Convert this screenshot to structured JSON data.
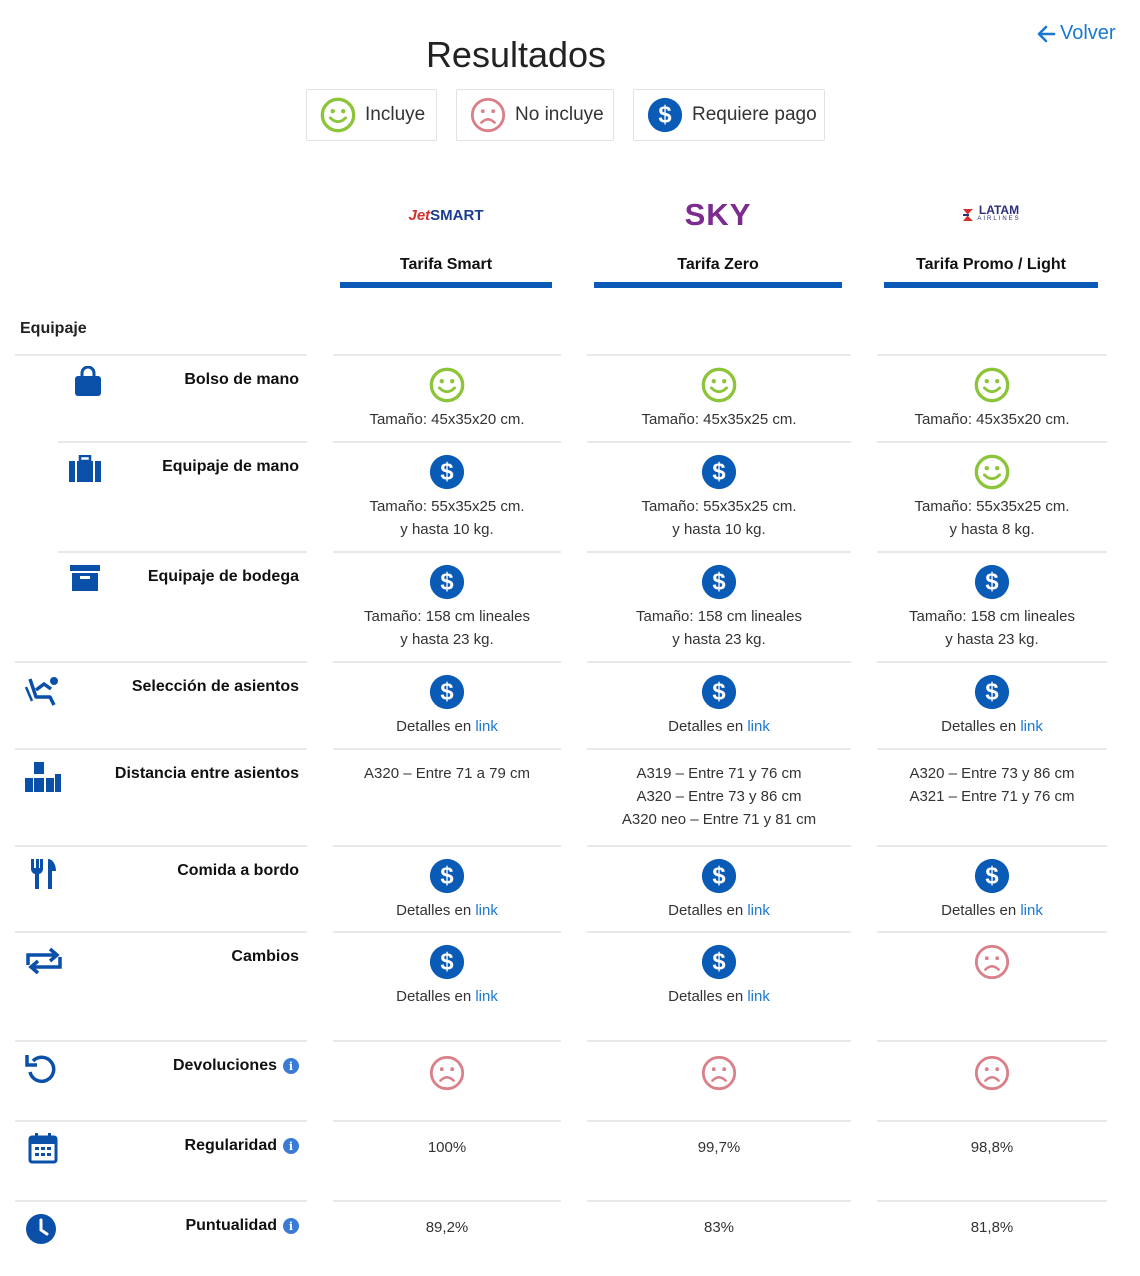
{
  "header": {
    "title": "Resultados",
    "back_label": "Volver"
  },
  "legend": {
    "includes": "Incluye",
    "not_includes": "No incluye",
    "requires_payment": "Requiere pago"
  },
  "airlines": [
    {
      "logo_text": "SMART",
      "logo_prefix": "Jet",
      "fare": "Tarifa Smart"
    },
    {
      "logo_text": "SKY",
      "fare": "Tarifa Zero"
    },
    {
      "logo_text": "LATAM",
      "logo_sub": "AIRLINES",
      "fare": "Tarifa Promo / Light"
    }
  ],
  "section_title": "Equipaje",
  "rows": [
    {
      "label": "Bolso de mano",
      "icon": "bag-icon",
      "cells": [
        {
          "status": "includes",
          "lines": [
            "Tamaño: 45x35x20 cm."
          ]
        },
        {
          "status": "includes",
          "lines": [
            "Tamaño: 45x35x25 cm."
          ]
        },
        {
          "status": "includes",
          "lines": [
            "Tamaño: 45x35x20 cm."
          ]
        }
      ]
    },
    {
      "label": "Equipaje de mano",
      "icon": "suitcase-icon",
      "cells": [
        {
          "status": "pay",
          "lines": [
            "Tamaño: 55x35x25 cm.",
            "y hasta 10 kg."
          ]
        },
        {
          "status": "pay",
          "lines": [
            "Tamaño: 55x35x25 cm.",
            "y hasta 10 kg."
          ]
        },
        {
          "status": "includes",
          "lines": [
            "Tamaño: 55x35x25 cm.",
            "y hasta 8 kg."
          ]
        }
      ]
    },
    {
      "label": "Equipaje de bodega",
      "icon": "archive-box-icon",
      "cells": [
        {
          "status": "pay",
          "lines": [
            "Tamaño: 158 cm lineales",
            "y hasta 23 kg."
          ]
        },
        {
          "status": "pay",
          "lines": [
            "Tamaño: 158 cm lineales",
            "y hasta 23 kg."
          ]
        },
        {
          "status": "pay",
          "lines": [
            "Tamaño: 158 cm lineales",
            "y hasta 23 kg."
          ]
        }
      ]
    },
    {
      "label": "Selección de asientos",
      "icon": "seat-icon",
      "cells": [
        {
          "status": "pay",
          "detail": "Detalles en",
          "link": "link"
        },
        {
          "status": "pay",
          "detail": "Detalles en",
          "link": "link"
        },
        {
          "status": "pay",
          "detail": "Detalles en",
          "link": "link"
        }
      ]
    },
    {
      "label": "Distancia entre asientos",
      "icon": "seat-pitch-icon",
      "cells": [
        {
          "status": "",
          "lines": [
            "A320 – Entre 71 a 79 cm"
          ]
        },
        {
          "status": "",
          "lines": [
            "A319 – Entre 71 y 76 cm",
            "A320 – Entre 73 y 86 cm",
            "A320 neo – Entre 71 y 81 cm"
          ]
        },
        {
          "status": "",
          "lines": [
            "A320 – Entre 73 y 86 cm",
            "A321 – Entre 71 y 76 cm"
          ]
        }
      ]
    },
    {
      "label": "Comida a bordo",
      "icon": "cutlery-icon",
      "cells": [
        {
          "status": "pay",
          "detail": "Detalles en",
          "link": "link"
        },
        {
          "status": "pay",
          "detail": "Detalles en",
          "link": "link"
        },
        {
          "status": "pay",
          "detail": "Detalles en",
          "link": "link"
        }
      ]
    },
    {
      "label": "Cambios",
      "icon": "swap-arrows-icon",
      "cells": [
        {
          "status": "pay",
          "detail": "Detalles en",
          "link": "link"
        },
        {
          "status": "pay",
          "detail": "Detalles en",
          "link": "link"
        },
        {
          "status": "not",
          "lines": []
        }
      ]
    },
    {
      "label": "Devoluciones",
      "icon": "refund-icon",
      "info": "i",
      "cells": [
        {
          "status": "not",
          "lines": []
        },
        {
          "status": "not",
          "lines": []
        },
        {
          "status": "not",
          "lines": []
        }
      ]
    },
    {
      "label": "Regularidad",
      "icon": "calendar-icon",
      "info": "i",
      "cells": [
        {
          "status": "",
          "lines": [
            "100%"
          ]
        },
        {
          "status": "",
          "lines": [
            "99,7%"
          ]
        },
        {
          "status": "",
          "lines": [
            "98,8%"
          ]
        }
      ]
    },
    {
      "label": "Puntualidad",
      "icon": "clock-icon",
      "info": "i",
      "cells": [
        {
          "status": "",
          "lines": [
            "89,2%"
          ]
        },
        {
          "status": "",
          "lines": [
            "83%"
          ]
        },
        {
          "status": "",
          "lines": [
            "81,8%"
          ]
        }
      ]
    }
  ],
  "colors": {
    "includes": "#8cc43a",
    "not": "#d9808a",
    "pay": "#0a5bb5",
    "accent_bar": "#0c5ab8",
    "link": "#1a78d2",
    "sky": "#7b2c8e",
    "jetsmart": "#1a3c8c",
    "latam": "#2b2f7a"
  }
}
